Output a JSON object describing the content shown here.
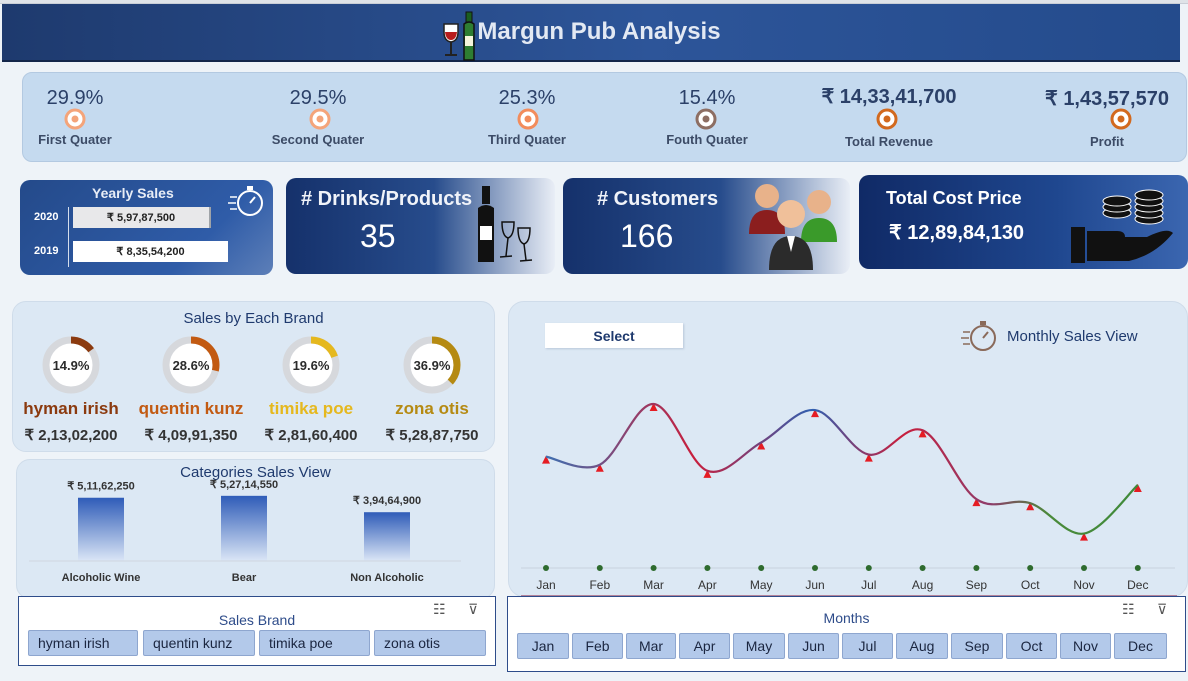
{
  "header": {
    "title": "Margun Pub Analysis"
  },
  "kpis": [
    {
      "value": "29.9%",
      "label": "First Quater",
      "color": "#f4a47a"
    },
    {
      "value": "29.5%",
      "label": "Second Quater",
      "color": "#f4a47a"
    },
    {
      "value": "25.3%",
      "label": "Third Quater",
      "color": "#f28c5c"
    },
    {
      "value": "15.4%",
      "label": "Fouth Quater",
      "color": "#8d6e63"
    },
    {
      "value": "₹ 14,33,41,700",
      "label": "Total Revenue",
      "color": "#d2691e"
    },
    {
      "value": "₹ 1,43,57,570",
      "label": "Profit",
      "color": "#d2691e"
    }
  ],
  "yearly_sales": {
    "title": "Yearly Sales",
    "rows": [
      {
        "year": "2020",
        "value": "₹ 5,97,87,500"
      },
      {
        "year": "2019",
        "value": "₹ 8,35,54,200"
      }
    ]
  },
  "drinks_card": {
    "label": "# Drinks/Products",
    "value": "35"
  },
  "customers_card": {
    "label": "# Customers",
    "value": "166"
  },
  "cost_card": {
    "label": "Total Cost Price",
    "value": "₹ 12,89,84,130"
  },
  "brands_panel": {
    "title": "Sales by Each Brand",
    "brands": [
      {
        "pct": "14.9%",
        "fraction": 0.149,
        "name": "hyman irish",
        "value": "₹ 2,13,02,200",
        "color": "#8b3a0f"
      },
      {
        "pct": "28.6%",
        "fraction": 0.286,
        "name": "quentin kunz",
        "value": "₹ 4,09,91,350",
        "color": "#c25a12"
      },
      {
        "pct": "19.6%",
        "fraction": 0.196,
        "name": "timika poe",
        "value": "₹ 2,81,60,400",
        "color": "#e5b81e"
      },
      {
        "pct": "36.9%",
        "fraction": 0.369,
        "name": "zona otis",
        "value": "₹ 5,28,87,750",
        "color": "#b58a12"
      }
    ]
  },
  "categories_panel": {
    "title": "Categories Sales View",
    "chart_data": {
      "type": "bar",
      "categories": [
        "Alcoholic Wine",
        "Bear",
        "Non Alcoholic"
      ],
      "values": [
        51162250,
        52714550,
        39464900
      ],
      "value_labels": [
        "₹ 5,11,62,250",
        "₹ 5,27,14,550",
        "₹ 3,94,64,900"
      ]
    }
  },
  "monthly_panel": {
    "select_label": "Select",
    "title": "Monthly Sales View",
    "chart_data": {
      "type": "line",
      "categories": [
        "Jan",
        "Feb",
        "Mar",
        "Apr",
        "May",
        "Jun",
        "Jul",
        "Aug",
        "Sep",
        "Oct",
        "Nov",
        "Dec"
      ],
      "values": [
        55,
        51,
        81,
        48,
        62,
        78,
        56,
        68,
        34,
        32,
        17,
        41
      ]
    }
  },
  "sales_brand_slicer": {
    "title": "Sales Brand",
    "items": [
      "hyman irish",
      "quentin kunz",
      "timika poe",
      "zona otis"
    ]
  },
  "months_slicer": {
    "title": "Months",
    "items": [
      "Jan",
      "Feb",
      "Mar",
      "Apr",
      "May",
      "Jun",
      "Jul",
      "Aug",
      "Sep",
      "Oct",
      "Nov",
      "Dec"
    ]
  }
}
